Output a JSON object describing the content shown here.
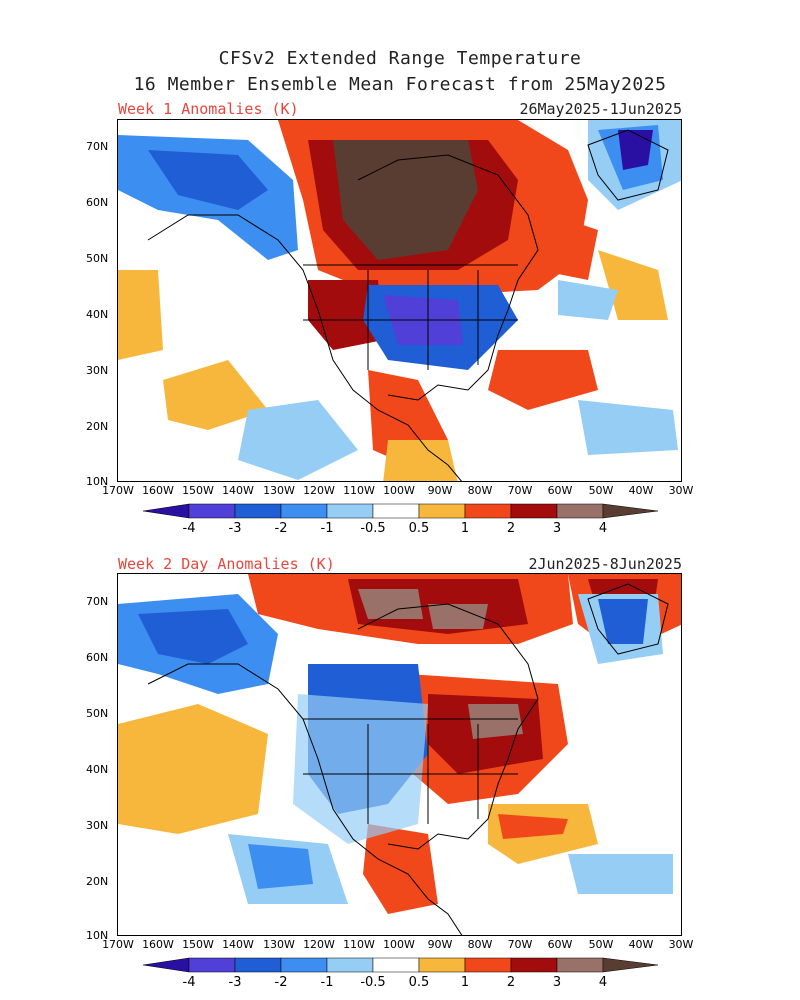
{
  "header": {
    "title_line1": "CFSv2 Extended Range Temperature",
    "title_line2": "16 Member Ensemble Mean Forecast from 25May2025"
  },
  "panels": [
    {
      "label": "Week 1 Anomalies (K)",
      "dates": "26May2025-1Jun2025"
    },
    {
      "label": "Week 2 Day Anomalies (K)",
      "dates": "2Jun2025-8Jun2025"
    }
  ],
  "axes": {
    "lat_labels": [
      "70N",
      "60N",
      "50N",
      "40N",
      "30N",
      "20N",
      "10N"
    ],
    "lon_labels": [
      "170W",
      "160W",
      "150W",
      "140W",
      "130W",
      "120W",
      "110W",
      "100W",
      "90W",
      "80W",
      "70W",
      "60W",
      "50W",
      "40W",
      "30W"
    ]
  },
  "colorbar": {
    "tick_labels": [
      "-4",
      "-3",
      "-2",
      "-1",
      "-0.5",
      "0.5",
      "1",
      "2",
      "3",
      "4"
    ],
    "colors": [
      "#2a0fa3",
      "#5040d8",
      "#1f5ed4",
      "#3c8ef0",
      "#95cdf5",
      "#ffffff",
      "#f7b73c",
      "#f0481a",
      "#a30c0c",
      "#9a7168",
      "#5a3d32"
    ]
  },
  "colors": {
    "title_red": "#e8463c",
    "land_line": "#000000"
  }
}
